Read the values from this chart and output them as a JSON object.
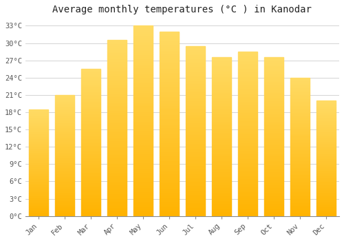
{
  "title": "Average monthly temperatures (°C ) in Kanodar",
  "months": [
    "Jan",
    "Feb",
    "Mar",
    "Apr",
    "May",
    "Jun",
    "Jul",
    "Aug",
    "Sep",
    "Oct",
    "Nov",
    "Dec"
  ],
  "values": [
    18.5,
    21.0,
    25.5,
    30.5,
    33.0,
    32.0,
    29.5,
    27.5,
    28.5,
    27.5,
    24.0,
    20.0
  ],
  "bar_color_top": "#FFB300",
  "bar_color_bottom": "#FFD966",
  "ylim": [
    0,
    34
  ],
  "yticks": [
    0,
    3,
    6,
    9,
    12,
    15,
    18,
    21,
    24,
    27,
    30,
    33
  ],
  "ytick_labels": [
    "0°C",
    "3°C",
    "6°C",
    "9°C",
    "12°C",
    "15°C",
    "18°C",
    "21°C",
    "24°C",
    "27°C",
    "30°C",
    "33°C"
  ],
  "background_color": "#FFFFFF",
  "grid_color": "#CCCCCC",
  "title_fontsize": 10,
  "tick_fontsize": 7.5,
  "font_family": "monospace",
  "bar_width": 0.75
}
